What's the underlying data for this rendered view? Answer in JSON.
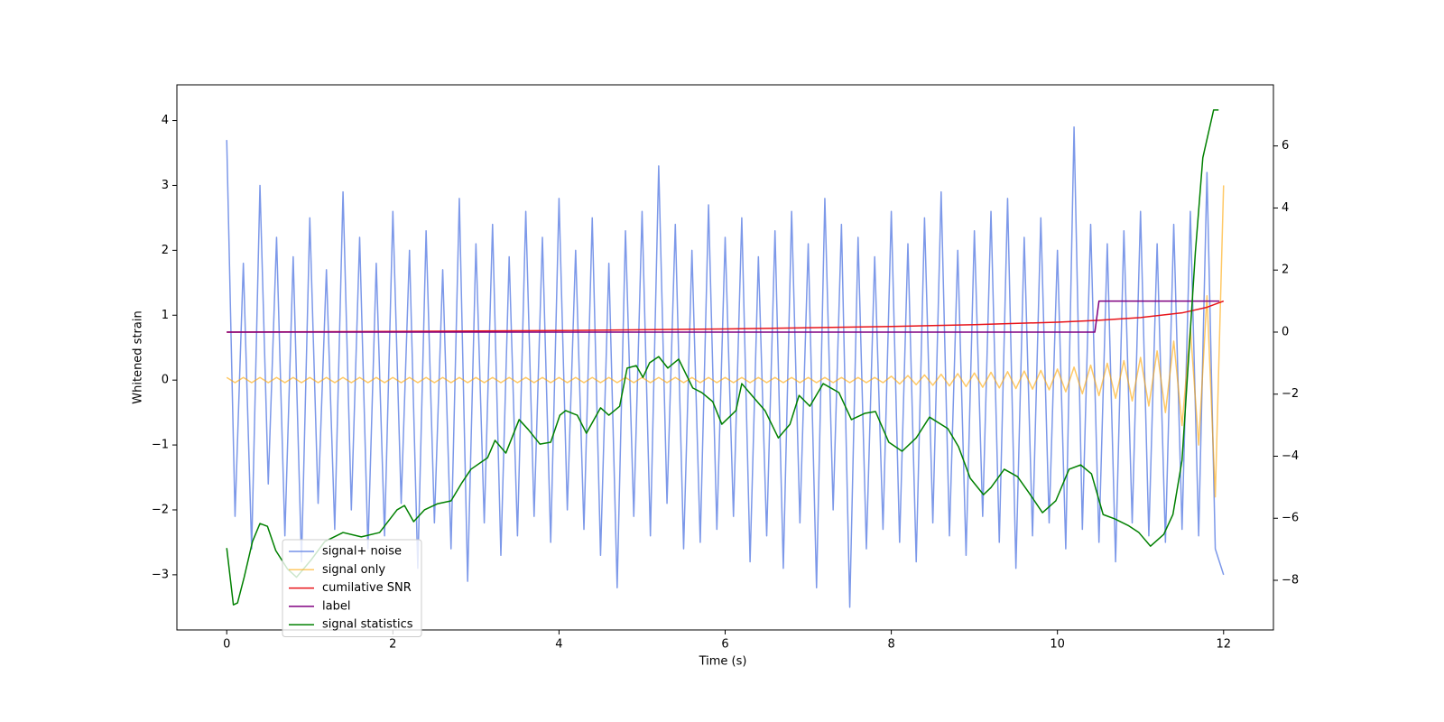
{
  "chart_data": {
    "type": "line",
    "xlabel": "Time (s)",
    "ylabel": "Whitened strain",
    "xlim": [
      -0.6,
      12.6
    ],
    "ylim": [
      -3.85,
      4.55
    ],
    "y2lim": [
      -9.6,
      7.97
    ],
    "xticks": [
      0,
      2,
      4,
      6,
      8,
      10,
      12
    ],
    "yticks": [
      {
        "value": -3,
        "label": "−3"
      },
      {
        "value": -2,
        "label": "−2"
      },
      {
        "value": -1,
        "label": "−1"
      },
      0,
      1,
      2,
      3,
      4
    ],
    "y2ticks": [
      {
        "value": -8,
        "label": "−8"
      },
      {
        "value": -6,
        "label": "−6"
      },
      {
        "value": -4,
        "label": "−4"
      },
      {
        "value": -2,
        "label": "−2"
      },
      0,
      2,
      4,
      6
    ],
    "legend": "lower left",
    "series": [
      {
        "name": "signal+ noise",
        "color": "#7592e8",
        "x": [
          0,
          0.1,
          0.2,
          0.3,
          0.4,
          0.5,
          0.6,
          0.7,
          0.8,
          0.9,
          1,
          1.1,
          1.2,
          1.3,
          1.4,
          1.5,
          1.6,
          1.7,
          1.8,
          1.9,
          2,
          2.1,
          2.2,
          2.3,
          2.4,
          2.5,
          2.6,
          2.7,
          2.8,
          2.9,
          3,
          3.1,
          3.2,
          3.3,
          3.4,
          3.5,
          3.6,
          3.7,
          3.8,
          3.9,
          4,
          4.1,
          4.2,
          4.3,
          4.4,
          4.5,
          4.6,
          4.7,
          4.8,
          4.9,
          5,
          5.1,
          5.2,
          5.3,
          5.4,
          5.5,
          5.6,
          5.7,
          5.8,
          5.9,
          6,
          6.1,
          6.2,
          6.3,
          6.4,
          6.5,
          6.6,
          6.7,
          6.8,
          6.9,
          7,
          7.1,
          7.2,
          7.3,
          7.4,
          7.5,
          7.6,
          7.7,
          7.8,
          7.9,
          8,
          8.1,
          8.2,
          8.3,
          8.4,
          8.5,
          8.6,
          8.7,
          8.8,
          8.9,
          9,
          9.1,
          9.2,
          9.3,
          9.4,
          9.5,
          9.6,
          9.7,
          9.8,
          9.9,
          10,
          10.1,
          10.2,
          10.3,
          10.4,
          10.5,
          10.6,
          10.7,
          10.8,
          10.9,
          11,
          11.1,
          11.2,
          11.3,
          11.4,
          11.5,
          11.6,
          11.7,
          11.8,
          11.9,
          12
        ],
        "values": [
          3.7,
          -2.1,
          1.8,
          -2.6,
          3.0,
          -1.6,
          2.2,
          -2.4,
          1.9,
          -2.8,
          2.5,
          -1.9,
          1.7,
          -2.3,
          2.9,
          -2.0,
          2.2,
          -2.6,
          1.8,
          -2.4,
          2.6,
          -1.9,
          2.0,
          -2.9,
          2.3,
          -2.2,
          1.7,
          -2.6,
          2.8,
          -3.1,
          2.1,
          -2.2,
          2.4,
          -2.7,
          1.9,
          -2.4,
          2.6,
          -2.1,
          2.2,
          -2.5,
          2.8,
          -2.0,
          2.0,
          -2.3,
          2.5,
          -2.7,
          1.8,
          -3.2,
          2.3,
          -2.1,
          2.6,
          -2.4,
          3.3,
          -1.9,
          2.4,
          -2.6,
          2.0,
          -2.5,
          2.7,
          -2.3,
          2.2,
          -2.1,
          2.5,
          -2.8,
          1.9,
          -2.4,
          2.3,
          -2.9,
          2.6,
          -2.2,
          2.1,
          -3.2,
          2.8,
          -2.0,
          2.4,
          -3.5,
          2.2,
          -2.6,
          1.9,
          -2.3,
          2.6,
          -2.5,
          2.1,
          -2.8,
          2.5,
          -2.2,
          2.9,
          -2.4,
          2.0,
          -2.7,
          2.3,
          -2.1,
          2.6,
          -2.5,
          2.8,
          -2.9,
          2.2,
          -2.4,
          2.5,
          -2.2,
          2.0,
          -2.6,
          3.9,
          -2.3,
          2.4,
          -2.5,
          2.1,
          -2.8,
          2.3,
          -2.2,
          2.6,
          -2.4,
          2.1,
          -2.5,
          2.4,
          -2.3,
          2.6,
          -2.4,
          3.2,
          -2.6,
          -3.0
        ]
      },
      {
        "name": "signal only",
        "color": "#ffa500",
        "x": [
          0,
          0.1,
          0.2,
          0.3,
          0.4,
          0.5,
          0.6,
          0.7,
          0.8,
          0.9,
          1,
          1.1,
          1.2,
          1.3,
          1.4,
          1.5,
          1.6,
          1.7,
          1.8,
          1.9,
          2,
          2.1,
          2.2,
          2.3,
          2.4,
          2.5,
          2.6,
          2.7,
          2.8,
          2.9,
          3,
          3.1,
          3.2,
          3.3,
          3.4,
          3.5,
          3.6,
          3.7,
          3.8,
          3.9,
          4,
          4.1,
          4.2,
          4.3,
          4.4,
          4.5,
          4.6,
          4.7,
          4.8,
          4.9,
          5,
          5.1,
          5.2,
          5.3,
          5.4,
          5.5,
          5.6,
          5.7,
          5.8,
          5.9,
          6,
          6.1,
          6.2,
          6.3,
          6.4,
          6.5,
          6.6,
          6.7,
          6.8,
          6.9,
          7,
          7.1,
          7.2,
          7.3,
          7.4,
          7.5,
          7.6,
          7.7,
          7.8,
          7.9,
          8,
          8.1,
          8.2,
          8.3,
          8.4,
          8.5,
          8.6,
          8.7,
          8.8,
          8.9,
          9,
          9.1,
          9.2,
          9.3,
          9.4,
          9.5,
          9.6,
          9.7,
          9.8,
          9.9,
          10,
          10.1,
          10.2,
          10.3,
          10.4,
          10.5,
          10.6,
          10.7,
          10.8,
          10.9,
          11,
          11.1,
          11.2,
          11.3,
          11.4,
          11.5,
          11.6,
          11.7,
          11.8,
          11.9,
          12
        ],
        "values": [
          0.04,
          -0.04,
          0.04,
          -0.04,
          0.04,
          -0.04,
          0.04,
          -0.04,
          0.04,
          -0.04,
          0.04,
          -0.04,
          0.04,
          -0.04,
          0.04,
          -0.04,
          0.04,
          -0.04,
          0.04,
          -0.04,
          0.04,
          -0.04,
          0.04,
          -0.04,
          0.04,
          -0.04,
          0.04,
          -0.04,
          0.04,
          -0.04,
          0.04,
          -0.04,
          0.04,
          -0.04,
          0.04,
          -0.04,
          0.04,
          -0.04,
          0.04,
          -0.04,
          0.04,
          -0.04,
          0.04,
          -0.04,
          0.04,
          -0.04,
          0.04,
          -0.04,
          0.04,
          -0.04,
          0.04,
          -0.04,
          0.04,
          -0.04,
          0.04,
          -0.04,
          0.04,
          -0.04,
          0.04,
          -0.04,
          0.04,
          -0.04,
          0.04,
          -0.04,
          0.04,
          -0.04,
          0.04,
          -0.04,
          0.04,
          -0.04,
          0.04,
          -0.04,
          0.04,
          -0.04,
          0.04,
          -0.04,
          0.04,
          -0.04,
          0.04,
          -0.04,
          0.06,
          -0.06,
          0.07,
          -0.07,
          0.08,
          -0.08,
          0.09,
          -0.09,
          0.1,
          -0.1,
          0.11,
          -0.11,
          0.12,
          -0.12,
          0.13,
          -0.13,
          0.14,
          -0.14,
          0.15,
          -0.15,
          0.17,
          -0.18,
          0.2,
          -0.21,
          0.23,
          -0.24,
          0.26,
          -0.28,
          0.3,
          -0.32,
          0.35,
          -0.4,
          0.45,
          -0.5,
          0.6,
          -0.7,
          0.8,
          -1.0,
          1.3,
          -1.8,
          3.0
        ]
      },
      {
        "name": "cumilative SNR",
        "color": "#e8141a",
        "axis": "y2",
        "x": [
          0,
          2,
          4,
          6,
          8,
          9,
          10,
          10.5,
          11,
          11.5,
          11.8,
          11.95,
          12
        ],
        "values": [
          0,
          0.02,
          0.05,
          0.1,
          0.18,
          0.24,
          0.32,
          0.38,
          0.47,
          0.62,
          0.8,
          0.95,
          1.0
        ]
      },
      {
        "name": "label",
        "color": "#800080",
        "axis": "y2",
        "x": [
          0,
          10.45,
          10.5,
          11.95
        ],
        "values": [
          0,
          0,
          1,
          1
        ]
      },
      {
        "name": "signal statistics",
        "color": "#008000",
        "axis": "y2",
        "x": [
          0,
          0.08,
          0.13,
          0.21,
          0.31,
          0.4,
          0.49,
          0.59,
          0.73,
          0.84,
          1.02,
          1.18,
          1.4,
          1.62,
          1.84,
          2.05,
          2.14,
          2.25,
          2.38,
          2.54,
          2.7,
          2.83,
          2.94,
          3.14,
          3.23,
          3.36,
          3.52,
          3.63,
          3.77,
          3.9,
          4.01,
          4.08,
          4.22,
          4.33,
          4.5,
          4.6,
          4.73,
          4.82,
          4.93,
          5.01,
          5.09,
          5.2,
          5.31,
          5.44,
          5.61,
          5.72,
          5.85,
          5.96,
          6.13,
          6.2,
          6.34,
          6.48,
          6.64,
          6.78,
          6.89,
          7.02,
          7.18,
          7.37,
          7.52,
          7.68,
          7.81,
          7.97,
          8.13,
          8.3,
          8.46,
          8.68,
          8.81,
          8.95,
          9.11,
          9.2,
          9.36,
          9.52,
          9.65,
          9.82,
          9.98,
          10.14,
          10.28,
          10.41,
          10.55,
          10.69,
          10.85,
          10.98,
          11.12,
          11.28,
          11.39,
          11.5,
          11.66,
          11.75,
          11.88,
          11.94
        ],
        "values": [
          -6.96,
          -8.79,
          -8.73,
          -7.9,
          -6.75,
          -6.17,
          -6.26,
          -7.04,
          -7.63,
          -7.9,
          -7.33,
          -6.75,
          -6.46,
          -6.6,
          -6.46,
          -5.73,
          -5.59,
          -6.11,
          -5.73,
          -5.53,
          -5.44,
          -4.86,
          -4.42,
          -4.05,
          -3.49,
          -3.9,
          -2.82,
          -3.14,
          -3.61,
          -3.55,
          -2.68,
          -2.53,
          -2.68,
          -3.26,
          -2.44,
          -2.68,
          -2.39,
          -1.16,
          -1.08,
          -1.46,
          -0.99,
          -0.79,
          -1.16,
          -0.87,
          -1.8,
          -1.95,
          -2.24,
          -2.97,
          -2.53,
          -1.66,
          -2.1,
          -2.53,
          -3.41,
          -2.97,
          -2.04,
          -2.39,
          -1.66,
          -1.95,
          -2.82,
          -2.62,
          -2.56,
          -3.55,
          -3.84,
          -3.41,
          -2.74,
          -3.11,
          -3.7,
          -4.71,
          -5.24,
          -5.01,
          -4.42,
          -4.66,
          -5.15,
          -5.82,
          -5.44,
          -4.42,
          -4.28,
          -4.57,
          -5.88,
          -6.02,
          -6.23,
          -6.46,
          -6.9,
          -6.52,
          -5.88,
          -4.13,
          2.56,
          5.62,
          7.16,
          7.16
        ]
      }
    ]
  }
}
